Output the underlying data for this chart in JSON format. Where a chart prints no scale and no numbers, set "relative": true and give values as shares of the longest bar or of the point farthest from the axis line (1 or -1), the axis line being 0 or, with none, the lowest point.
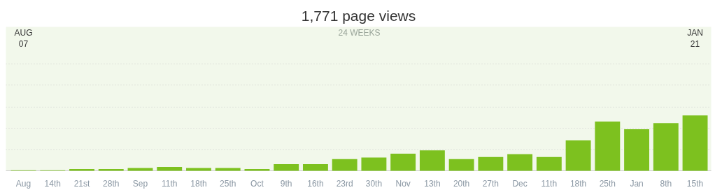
{
  "chart_data": {
    "type": "bar",
    "title": "1,771 page views",
    "relative": true,
    "color": "#7dc11f",
    "ref_lines": [
      {
        "axis": "y",
        "value": 0.38,
        "color": "#cccccc",
        "line_style": "dotted"
      },
      {
        "axis": "y",
        "value": 0.77,
        "color": "#cccccc",
        "line_style": "dotted"
      },
      {
        "axis": "y",
        "value": 1.15,
        "color": "#cccccc",
        "line_style": "dotted"
      },
      {
        "axis": "y",
        "value": 1.55,
        "color": "#cccccc",
        "line_style": "dotted"
      },
      {
        "axis": "y",
        "value": 1.93,
        "color": "#cccccc",
        "line_style": "dotted"
      }
    ],
    "categories": [
      "Aug",
      "14th",
      "21st",
      "28th",
      "Sep",
      "11th",
      "18th",
      "25th",
      "Oct",
      "9th",
      "16th",
      "23rd",
      "30th",
      "Nov",
      "13th",
      "20th",
      "27th",
      "Dec",
      "11th",
      "18th",
      "25th",
      "Jan",
      "8th",
      "15th"
    ],
    "values": [
      0.01,
      0.01,
      0.03,
      0.03,
      0.05,
      0.07,
      0.05,
      0.05,
      0.03,
      0.12,
      0.12,
      0.21,
      0.24,
      0.31,
      0.37,
      0.21,
      0.25,
      0.3,
      0.25,
      0.55,
      0.89,
      0.75,
      0.86,
      1
    ],
    "annotations": [
      "AUG\n07",
      "24 WEEKS",
      "JAN\n21"
    ]
  }
}
